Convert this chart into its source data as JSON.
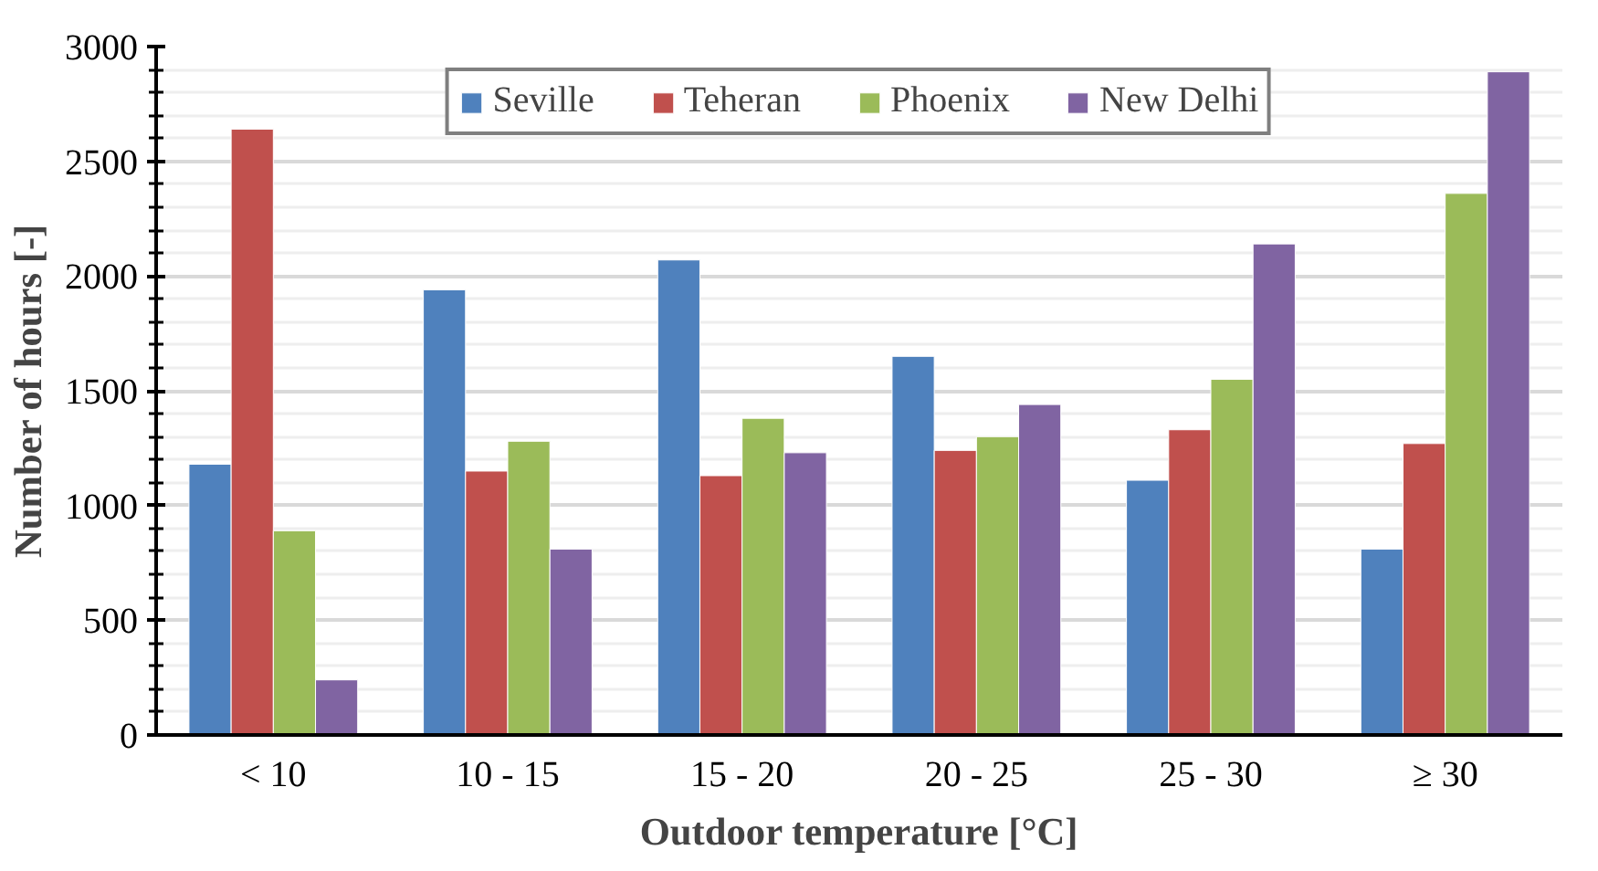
{
  "chart_data": {
    "type": "bar",
    "xlabel": "Outdoor temperature [°C]",
    "ylabel": "Number of hours [-]",
    "categories": [
      "< 10",
      "10 - 15",
      "15 - 20",
      "20 - 25",
      "25 - 30",
      "≥ 30"
    ],
    "series": [
      {
        "name": "Seville",
        "color": "#4f81bd",
        "values": [
          1180,
          1940,
          2070,
          1650,
          1110,
          810
        ]
      },
      {
        "name": "Teheran",
        "color": "#c0504d",
        "values": [
          2640,
          1150,
          1130,
          1240,
          1330,
          1270
        ]
      },
      {
        "name": "Phoenix",
        "color": "#9bbb59",
        "values": [
          890,
          1280,
          1380,
          1300,
          1550,
          2360
        ]
      },
      {
        "name": "New Delhi",
        "color": "#8064a2",
        "values": [
          240,
          810,
          1230,
          1440,
          2140,
          2890
        ]
      }
    ],
    "ylim": [
      0,
      3000
    ],
    "yticks": [
      0,
      500,
      1000,
      1500,
      2000,
      2500,
      3000
    ],
    "grid": "y",
    "legend": "top"
  }
}
